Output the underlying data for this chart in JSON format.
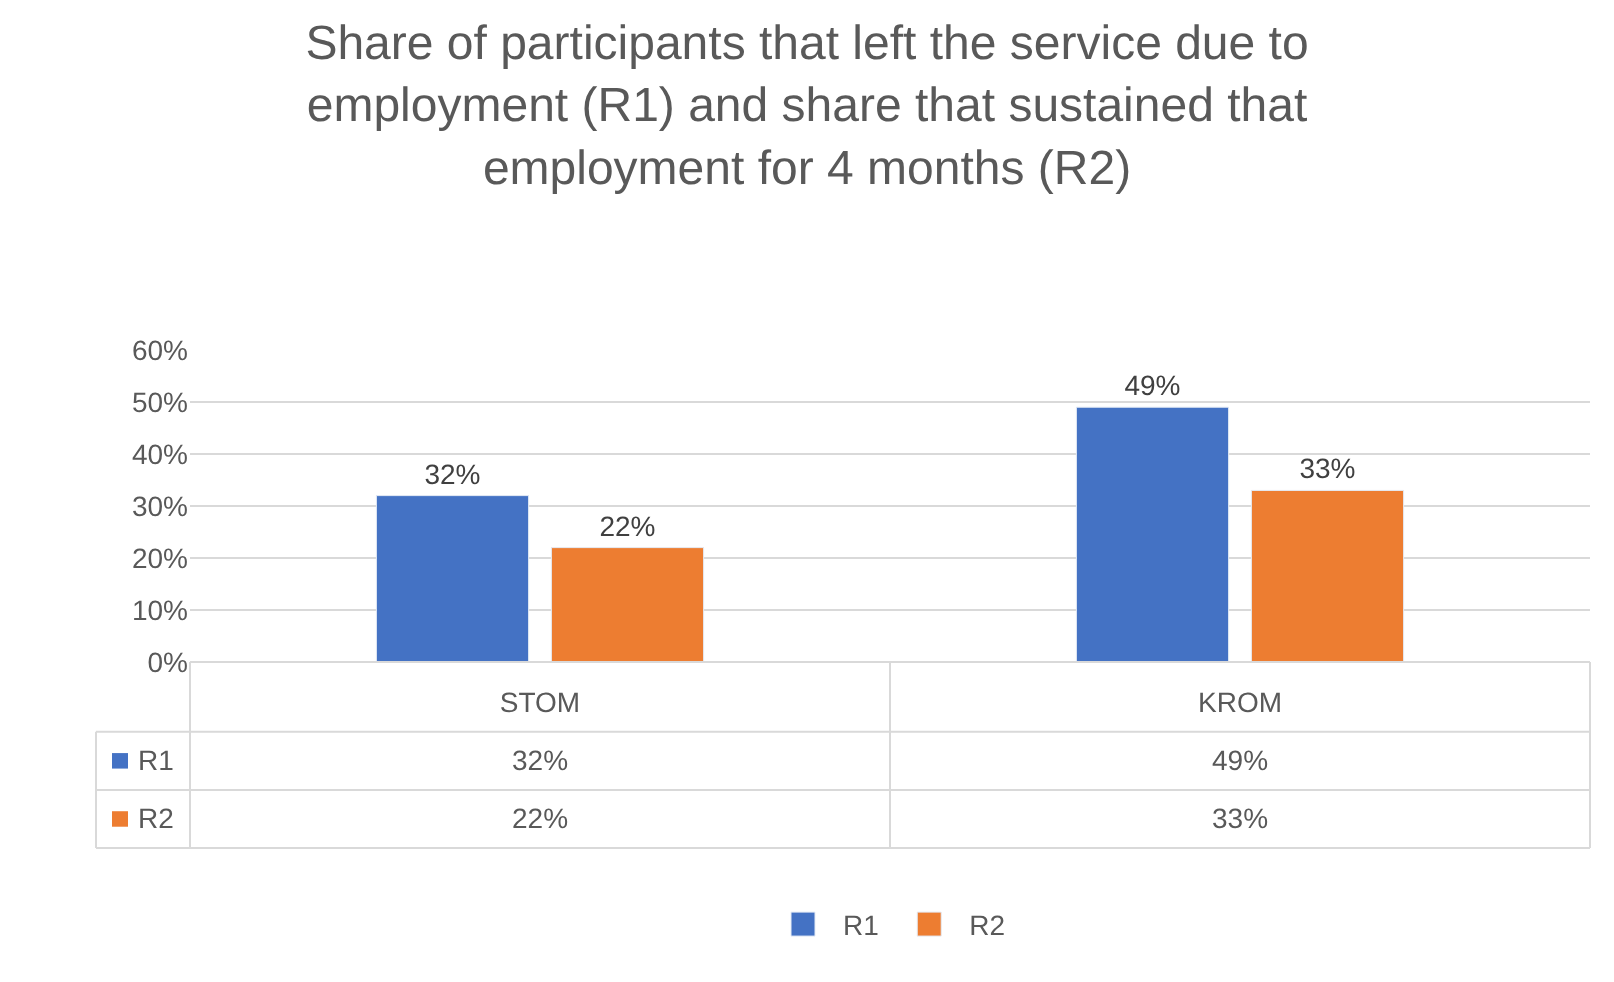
{
  "chart_data": {
    "type": "bar",
    "title": "Share of participants that left the service due to employment (R1) and share that sustained that employment for 4 months (R2)",
    "categories": [
      "STOM",
      "KROM"
    ],
    "series": [
      {
        "name": "R1",
        "color": "#4472c4",
        "values": [
          32,
          49
        ],
        "value_labels": [
          "32%",
          "49%"
        ]
      },
      {
        "name": "R2",
        "color": "#ed7d31",
        "values": [
          22,
          33
        ],
        "value_labels": [
          "22%",
          "33%"
        ]
      }
    ],
    "ylim": [
      0,
      60
    ],
    "yticks": [
      {
        "value": 0,
        "label": "0%"
      },
      {
        "value": 10,
        "label": "10%"
      },
      {
        "value": 20,
        "label": "20%"
      },
      {
        "value": 30,
        "label": "30%"
      },
      {
        "value": 40,
        "label": "40%"
      },
      {
        "value": 50,
        "label": "50%"
      },
      {
        "value": 60,
        "label": "60%"
      }
    ],
    "grid": "y",
    "legend": "bottom"
  }
}
